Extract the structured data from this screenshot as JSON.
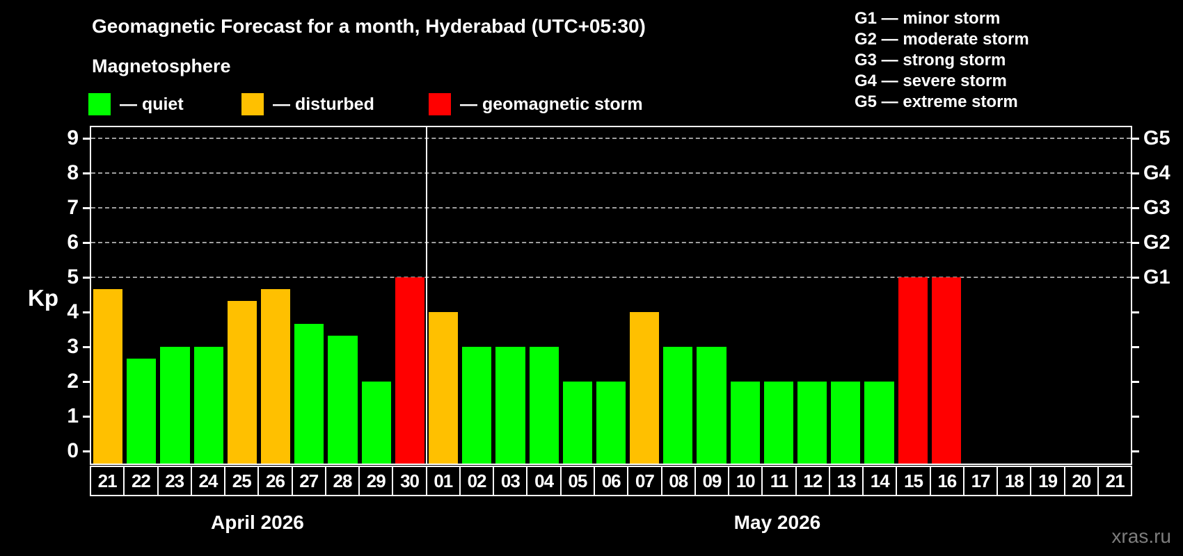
{
  "header": {
    "title": "Geomagnetic Forecast for a month, Hyderabad (UTC+05:30)",
    "subtitle": "Magnetosphere"
  },
  "legend": {
    "items": [
      {
        "label": "— quiet",
        "color": "#00ff00"
      },
      {
        "label": "— disturbed",
        "color": "#ffc000"
      },
      {
        "label": "— geomagnetic storm",
        "color": "#ff0000"
      }
    ]
  },
  "g_legend": {
    "items": [
      "G1 — minor storm",
      "G2 — moderate storm",
      "G3 — strong storm",
      "G4 — severe storm",
      "G5 — extreme storm"
    ]
  },
  "watermark": "xras.ru",
  "chart_data": {
    "type": "bar",
    "title": "Geomagnetic Forecast for a month, Hyderabad (UTC+05:30)",
    "subtitle": "Magnetosphere",
    "ylabel": "Kp",
    "ylim": [
      0,
      9
    ],
    "yticks": [
      0,
      1,
      2,
      3,
      4,
      5,
      6,
      7,
      8,
      9
    ],
    "gridlines_at": [
      5,
      6,
      7,
      8,
      9
    ],
    "grid": "dashed horizontal at G-storm levels only",
    "right_axis": [
      {
        "kp": 9,
        "label": "G5"
      },
      {
        "kp": 8,
        "label": "G4"
      },
      {
        "kp": 7,
        "label": "G3"
      },
      {
        "kp": 6,
        "label": "G2"
      },
      {
        "kp": 5,
        "label": "G1"
      }
    ],
    "colors": {
      "quiet": "#00ff00",
      "disturbed": "#ffc000",
      "storm": "#ff0000"
    },
    "months": [
      {
        "label": "April 2026",
        "start_index": 0,
        "count": 10
      },
      {
        "label": "May 2026",
        "start_index": 10,
        "count": 21
      }
    ],
    "categories": [
      "21",
      "22",
      "23",
      "24",
      "25",
      "26",
      "27",
      "28",
      "29",
      "30",
      "01",
      "02",
      "03",
      "04",
      "05",
      "06",
      "07",
      "08",
      "09",
      "10",
      "11",
      "12",
      "13",
      "14",
      "15",
      "16",
      "17",
      "18",
      "19",
      "20",
      "21"
    ],
    "values": [
      4.67,
      2.67,
      3,
      3,
      4.33,
      4.67,
      3.67,
      3.33,
      2,
      5,
      4,
      3,
      3,
      3,
      2,
      2,
      4,
      3,
      3,
      2,
      2,
      2,
      2,
      2,
      5,
      5,
      null,
      null,
      null,
      null,
      null
    ],
    "status": [
      "disturbed",
      "quiet",
      "quiet",
      "quiet",
      "disturbed",
      "disturbed",
      "quiet",
      "quiet",
      "quiet",
      "storm",
      "disturbed",
      "quiet",
      "quiet",
      "quiet",
      "quiet",
      "quiet",
      "disturbed",
      "quiet",
      "quiet",
      "quiet",
      "quiet",
      "quiet",
      "quiet",
      "quiet",
      "storm",
      "storm",
      null,
      null,
      null,
      null,
      null
    ]
  }
}
